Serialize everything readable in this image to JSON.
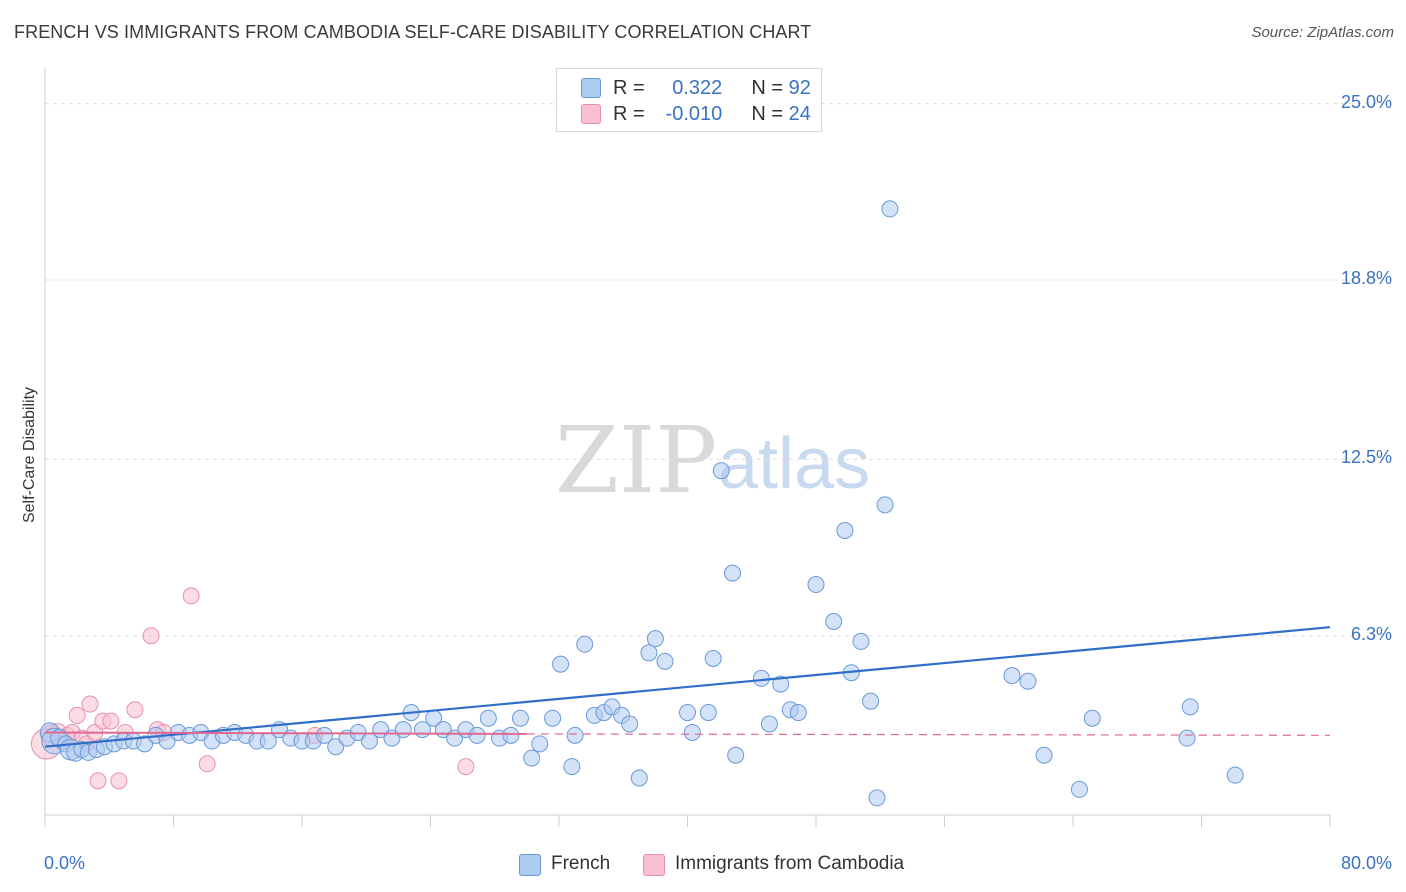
{
  "header": {
    "title": "FRENCH VS IMMIGRANTS FROM CAMBODIA SELF-CARE DISABILITY CORRELATION CHART",
    "source": "Source: ZipAtlas.com"
  },
  "watermark": {
    "zip": "ZIP",
    "atlas": "atlas"
  },
  "legend": {
    "french": {
      "r_label": "R =",
      "r_value": "0.322",
      "n_label": "N =",
      "n_value": "92"
    },
    "cambodia": {
      "r_label": "R =",
      "r_value": "-0.010",
      "n_label": "N =",
      "n_value": "24"
    }
  },
  "colors": {
    "french_fill": "#aecbf0",
    "french_stroke": "#6a9ad8",
    "french_line": "#2f6fc9",
    "cambodia_fill": "#f8c0d0",
    "cambodia_stroke": "#e890ab",
    "cambodia_line": "#e06890",
    "grid": "#dedede",
    "axis_label": "#3a72c4"
  },
  "chart_data": {
    "type": "scatter",
    "title": "FRENCH VS IMMIGRANTS FROM CAMBODIA SELF-CARE DISABILITY CORRELATION CHART",
    "xlabel": "",
    "ylabel": "Self-Care Disability",
    "xlim": [
      0,
      80
    ],
    "ylim": [
      0,
      25.9
    ],
    "x_tick_labels": [
      "0.0%",
      "80.0%"
    ],
    "y_ticks": [
      6.3,
      12.5,
      18.8,
      25.0
    ],
    "y_tick_labels": [
      "6.3%",
      "12.5%",
      "18.8%",
      "25.0%"
    ],
    "grid": "horizontal dashed",
    "legend_position": "top-center",
    "series": [
      {
        "name": "French",
        "r": 0.322,
        "n": 92,
        "trend": {
          "x": [
            0,
            80
          ],
          "y": [
            2.4,
            6.6
          ]
        },
        "points": [
          [
            0.3,
            2.9,
            1.2
          ],
          [
            0.6,
            2.6,
            1.6
          ],
          [
            0.9,
            2.7,
            1.1
          ],
          [
            1.3,
            2.5,
            1.0
          ],
          [
            1.6,
            2.3,
            1.3
          ],
          [
            1.9,
            2.2,
            1.1
          ],
          [
            2.3,
            2.3,
            1.0
          ],
          [
            2.7,
            2.2,
            1.0
          ],
          [
            3.2,
            2.3,
            1.0
          ],
          [
            3.7,
            2.4,
            1.0
          ],
          [
            4.3,
            2.5,
            1.0
          ],
          [
            4.9,
            2.6,
            1.0
          ],
          [
            5.5,
            2.6,
            1.0
          ],
          [
            6.2,
            2.5,
            1.0
          ],
          [
            6.9,
            2.8,
            1.0
          ],
          [
            7.6,
            2.6,
            1.0
          ],
          [
            8.3,
            2.9,
            1.0
          ],
          [
            9.0,
            2.8,
            1.0
          ],
          [
            9.7,
            2.9,
            1.0
          ],
          [
            10.4,
            2.6,
            1.0
          ],
          [
            11.1,
            2.8,
            1.0
          ],
          [
            11.8,
            2.9,
            1.0
          ],
          [
            12.5,
            2.8,
            1.0
          ],
          [
            13.2,
            2.6,
            1.0
          ],
          [
            13.9,
            2.6,
            1.0
          ],
          [
            14.6,
            3.0,
            1.0
          ],
          [
            15.3,
            2.7,
            1.0
          ],
          [
            16.0,
            2.6,
            1.0
          ],
          [
            16.7,
            2.6,
            1.0
          ],
          [
            17.4,
            2.8,
            1.0
          ],
          [
            18.1,
            2.4,
            1.0
          ],
          [
            18.8,
            2.7,
            1.0
          ],
          [
            19.5,
            2.9,
            1.0
          ],
          [
            20.2,
            2.6,
            1.0
          ],
          [
            20.9,
            3.0,
            1.0
          ],
          [
            21.6,
            2.7,
            1.0
          ],
          [
            22.3,
            3.0,
            1.0
          ],
          [
            22.8,
            3.6,
            1.0
          ],
          [
            23.5,
            3.0,
            1.0
          ],
          [
            24.2,
            3.4,
            1.0
          ],
          [
            24.8,
            3.0,
            1.0
          ],
          [
            25.5,
            2.7,
            1.0
          ],
          [
            26.2,
            3.0,
            1.0
          ],
          [
            26.9,
            2.8,
            1.0
          ],
          [
            27.6,
            3.4,
            1.0
          ],
          [
            28.3,
            2.7,
            1.0
          ],
          [
            29.0,
            2.8,
            1.0
          ],
          [
            29.6,
            3.4,
            1.0
          ],
          [
            30.3,
            2.0,
            1.0
          ],
          [
            30.8,
            2.5,
            1.0
          ],
          [
            31.6,
            3.4,
            1.0
          ],
          [
            32.1,
            5.3,
            1.0
          ],
          [
            32.8,
            1.7,
            1.0
          ],
          [
            33.0,
            2.8,
            1.0
          ],
          [
            33.6,
            6.0,
            1.0
          ],
          [
            34.2,
            3.5,
            1.0
          ],
          [
            34.8,
            3.6,
            1.0
          ],
          [
            35.3,
            3.8,
            1.0
          ],
          [
            35.9,
            3.5,
            1.0
          ],
          [
            36.4,
            3.2,
            1.0
          ],
          [
            37.0,
            1.3,
            1.0
          ],
          [
            37.6,
            5.7,
            1.0
          ],
          [
            38.0,
            6.2,
            1.0
          ],
          [
            38.6,
            5.4,
            1.0
          ],
          [
            40.0,
            3.6,
            1.0
          ],
          [
            40.3,
            2.9,
            1.0
          ],
          [
            41.3,
            3.6,
            1.0
          ],
          [
            41.6,
            5.5,
            1.0
          ],
          [
            42.1,
            12.1,
            1.0
          ],
          [
            42.8,
            8.5,
            1.0
          ],
          [
            43.0,
            2.1,
            1.0
          ],
          [
            44.6,
            4.8,
            1.0
          ],
          [
            45.1,
            3.2,
            1.0
          ],
          [
            45.8,
            4.6,
            1.0
          ],
          [
            46.4,
            3.7,
            1.0
          ],
          [
            46.9,
            3.6,
            1.0
          ],
          [
            48.0,
            8.1,
            1.0
          ],
          [
            49.1,
            6.8,
            1.0
          ],
          [
            49.8,
            10.0,
            1.0
          ],
          [
            50.2,
            5.0,
            1.0
          ],
          [
            50.8,
            6.1,
            1.0
          ],
          [
            51.4,
            4.0,
            1.0
          ],
          [
            51.8,
            0.6,
            1.0
          ],
          [
            52.3,
            10.9,
            1.0
          ],
          [
            52.6,
            21.3,
            1.0
          ],
          [
            60.2,
            4.9,
            1.0
          ],
          [
            61.2,
            4.7,
            1.0
          ],
          [
            62.2,
            2.1,
            1.0
          ],
          [
            64.4,
            0.9,
            1.0
          ],
          [
            65.2,
            3.4,
            1.0
          ],
          [
            71.1,
            2.7,
            1.0
          ],
          [
            71.3,
            3.8,
            1.0
          ],
          [
            74.1,
            1.4,
            1.0
          ]
        ]
      },
      {
        "name": "Immigrants from Cambodia",
        "r": -0.01,
        "n": 24,
        "trend": {
          "x": [
            0,
            30
          ],
          "y": [
            2.9,
            2.85
          ]
        },
        "trend_dashed_extension": {
          "x": [
            30,
            80
          ],
          "y": [
            2.85,
            2.8
          ]
        },
        "points": [
          [
            0.1,
            2.5,
            1.9
          ],
          [
            0.4,
            2.8,
            1.3
          ],
          [
            0.8,
            2.9,
            1.1
          ],
          [
            1.1,
            2.6,
            1.1
          ],
          [
            1.4,
            2.8,
            1.0
          ],
          [
            1.7,
            2.9,
            1.0
          ],
          [
            2.0,
            3.5,
            1.0
          ],
          [
            2.3,
            2.7,
            1.0
          ],
          [
            2.6,
            2.5,
            1.0
          ],
          [
            2.8,
            3.9,
            1.0
          ],
          [
            3.1,
            2.9,
            1.0
          ],
          [
            3.3,
            1.2,
            1.0
          ],
          [
            3.6,
            3.3,
            1.0
          ],
          [
            4.1,
            3.3,
            1.0
          ],
          [
            4.6,
            1.2,
            1.0
          ],
          [
            5.0,
            2.9,
            1.0
          ],
          [
            5.6,
            3.7,
            1.0
          ],
          [
            6.6,
            6.3,
            1.0
          ],
          [
            7.0,
            3.0,
            1.0
          ],
          [
            7.4,
            2.9,
            1.0
          ],
          [
            9.1,
            7.7,
            1.0
          ],
          [
            10.1,
            1.8,
            1.0
          ],
          [
            16.8,
            2.8,
            1.0
          ],
          [
            26.2,
            1.7,
            1.0
          ]
        ]
      }
    ]
  },
  "bottom_legend": {
    "french_label": "French",
    "cambodia_label": "Immigrants from Cambodia"
  }
}
